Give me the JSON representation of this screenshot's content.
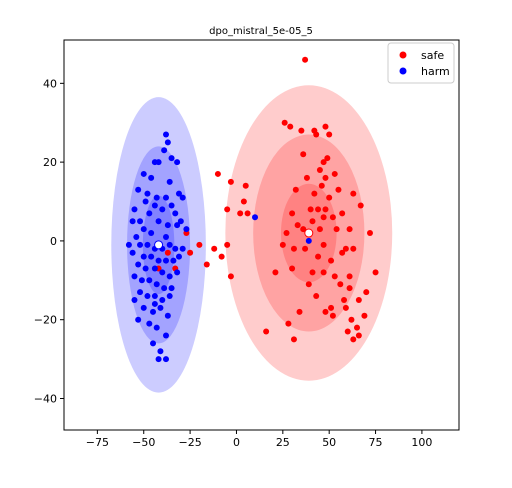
{
  "chart_data": {
    "type": "scatter",
    "title": "dpo_mistral_5e-05_5",
    "xlabel": "",
    "ylabel": "",
    "xlim": [
      -93,
      120
    ],
    "ylim": [
      -48,
      51
    ],
    "xticks": [
      -75,
      -50,
      -25,
      0,
      25,
      50,
      75,
      100
    ],
    "yticks": [
      -40,
      -20,
      0,
      20,
      40
    ],
    "grid": false,
    "legend_position": "top-right",
    "series": [
      {
        "name": "safe",
        "color": "#ff0000",
        "centroid": [
          39,
          2
        ],
        "ellipse_sd": [
          13,
          11,
          33
        ],
        "ellipse_axes_1sd": [
          15,
          12.5
        ],
        "points": [
          [
            37,
            46
          ],
          [
            26,
            30
          ],
          [
            29,
            29
          ],
          [
            35,
            28
          ],
          [
            42,
            28
          ],
          [
            43,
            27
          ],
          [
            48,
            29
          ],
          [
            50,
            27
          ],
          [
            36,
            22
          ],
          [
            47,
            20
          ],
          [
            49,
            21
          ],
          [
            45,
            18
          ],
          [
            53,
            17
          ],
          [
            38,
            16
          ],
          [
            48,
            16
          ],
          [
            46,
            14
          ],
          [
            55,
            13
          ],
          [
            32,
            13
          ],
          [
            42,
            12
          ],
          [
            50,
            11
          ],
          [
            63,
            12
          ],
          [
            67,
            9
          ],
          [
            40,
            8
          ],
          [
            44,
            8
          ],
          [
            48,
            8
          ],
          [
            30,
            7
          ],
          [
            41,
            5
          ],
          [
            47,
            6
          ],
          [
            52,
            6
          ],
          [
            57,
            7
          ],
          [
            33,
            4
          ],
          [
            36,
            3
          ],
          [
            45,
            3
          ],
          [
            54,
            3
          ],
          [
            61,
            3
          ],
          [
            72,
            2
          ],
          [
            25,
            -1
          ],
          [
            31,
            -2
          ],
          [
            47,
            -1
          ],
          [
            59,
            -2
          ],
          [
            44,
            -4
          ],
          [
            51,
            -5
          ],
          [
            57,
            -3
          ],
          [
            63,
            -2
          ],
          [
            41,
            -8
          ],
          [
            47,
            -8
          ],
          [
            53,
            -9
          ],
          [
            61,
            -9
          ],
          [
            75,
            -8
          ],
          [
            30,
            -7
          ],
          [
            21,
            -8
          ],
          [
            39,
            -11
          ],
          [
            56,
            -11
          ],
          [
            61,
            -12
          ],
          [
            70,
            -13
          ],
          [
            43,
            -14
          ],
          [
            58,
            -15
          ],
          [
            66,
            -15
          ],
          [
            51,
            -17
          ],
          [
            59,
            -17
          ],
          [
            69,
            -19
          ],
          [
            48,
            -18
          ],
          [
            52,
            -19
          ],
          [
            62,
            -20
          ],
          [
            65,
            -22
          ],
          [
            28,
            -21
          ],
          [
            31,
            -25
          ],
          [
            16,
            -23
          ],
          [
            63,
            -25
          ],
          [
            66,
            -24
          ],
          [
            60,
            -23
          ],
          [
            34,
            -18
          ],
          [
            37,
            -2
          ],
          [
            27,
            2
          ],
          [
            4,
            10
          ],
          [
            5,
            14
          ],
          [
            6,
            7
          ],
          [
            -3,
            15
          ],
          [
            -5,
            8
          ],
          [
            -5,
            -1
          ],
          [
            -8,
            -4
          ],
          [
            -12,
            -2
          ],
          [
            -16,
            -6
          ],
          [
            -25,
            -3
          ],
          [
            -27,
            2
          ],
          [
            -33,
            -7
          ],
          [
            -37,
            -3
          ],
          [
            -42,
            -7
          ],
          [
            -20,
            -1
          ],
          [
            -10,
            17
          ],
          [
            -3,
            -9
          ],
          [
            2,
            7
          ]
        ]
      },
      {
        "name": "harm",
        "color": "#0000ff",
        "centroid": [
          -42,
          -1
        ],
        "ellipse_sd": [
          13,
          11,
          33
        ],
        "ellipse_axes_1sd": [
          8.5,
          12.5
        ],
        "points": [
          [
            -38,
            27
          ],
          [
            -37,
            25
          ],
          [
            -39,
            23
          ],
          [
            -35,
            21
          ],
          [
            -44,
            20
          ],
          [
            -42,
            20
          ],
          [
            -32,
            20
          ],
          [
            -50,
            17
          ],
          [
            -46,
            16
          ],
          [
            -36,
            15
          ],
          [
            -53,
            13
          ],
          [
            -48,
            12
          ],
          [
            -43,
            11
          ],
          [
            -38,
            11
          ],
          [
            -31,
            12
          ],
          [
            -29,
            11
          ],
          [
            -49,
            10
          ],
          [
            -44,
            9
          ],
          [
            -40,
            8
          ],
          [
            -35,
            9
          ],
          [
            -55,
            8
          ],
          [
            -47,
            7
          ],
          [
            -52,
            5
          ],
          [
            -56,
            5
          ],
          [
            -42,
            5
          ],
          [
            -37,
            4
          ],
          [
            -32,
            4
          ],
          [
            -50,
            3
          ],
          [
            -46,
            2
          ],
          [
            -38,
            1
          ],
          [
            -54,
            1
          ],
          [
            -58,
            -1
          ],
          [
            -52,
            -1
          ],
          [
            -48,
            -1
          ],
          [
            -44,
            -2
          ],
          [
            -40,
            -2
          ],
          [
            -36,
            -1
          ],
          [
            -33,
            -2
          ],
          [
            -29,
            -2
          ],
          [
            -56,
            -3
          ],
          [
            -50,
            -4
          ],
          [
            -46,
            -4
          ],
          [
            -42,
            -5
          ],
          [
            -38,
            -5
          ],
          [
            -34,
            -5
          ],
          [
            -53,
            -6
          ],
          [
            -49,
            -7
          ],
          [
            -44,
            -7
          ],
          [
            -40,
            -8
          ],
          [
            -36,
            -9
          ],
          [
            -32,
            -8
          ],
          [
            -55,
            -9
          ],
          [
            -51,
            -10
          ],
          [
            -47,
            -10
          ],
          [
            -43,
            -11
          ],
          [
            -39,
            -12
          ],
          [
            -35,
            -12
          ],
          [
            -52,
            -13
          ],
          [
            -48,
            -14
          ],
          [
            -44,
            -14
          ],
          [
            -40,
            -15
          ],
          [
            -36,
            -14
          ],
          [
            -55,
            -15
          ],
          [
            -50,
            -17
          ],
          [
            -45,
            -18
          ],
          [
            -41,
            -17
          ],
          [
            -37,
            -19
          ],
          [
            -53,
            -20
          ],
          [
            -47,
            -21
          ],
          [
            -43,
            -22
          ],
          [
            -38,
            -24
          ],
          [
            -45,
            -26
          ],
          [
            -41,
            -28
          ],
          [
            -38,
            -30
          ],
          [
            -42,
            -30
          ],
          [
            -44,
            -16
          ],
          [
            -30,
            5
          ],
          [
            -27,
            3
          ],
          [
            -33,
            7
          ],
          [
            -31,
            -4
          ],
          [
            10,
            6
          ],
          [
            39,
            0
          ]
        ]
      }
    ]
  }
}
